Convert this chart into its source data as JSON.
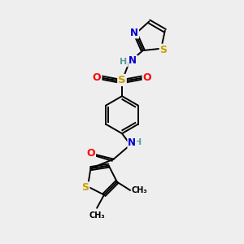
{
  "background_color": "#eeeeee",
  "bond_color": "#000000",
  "atom_colors": {
    "S": "#c8a000",
    "N": "#0000cd",
    "O": "#ff0000",
    "C": "#000000",
    "H": "#5f9ea0"
  },
  "font_size_atom": 8.5,
  "font_size_small": 7.0,
  "lw": 1.4
}
